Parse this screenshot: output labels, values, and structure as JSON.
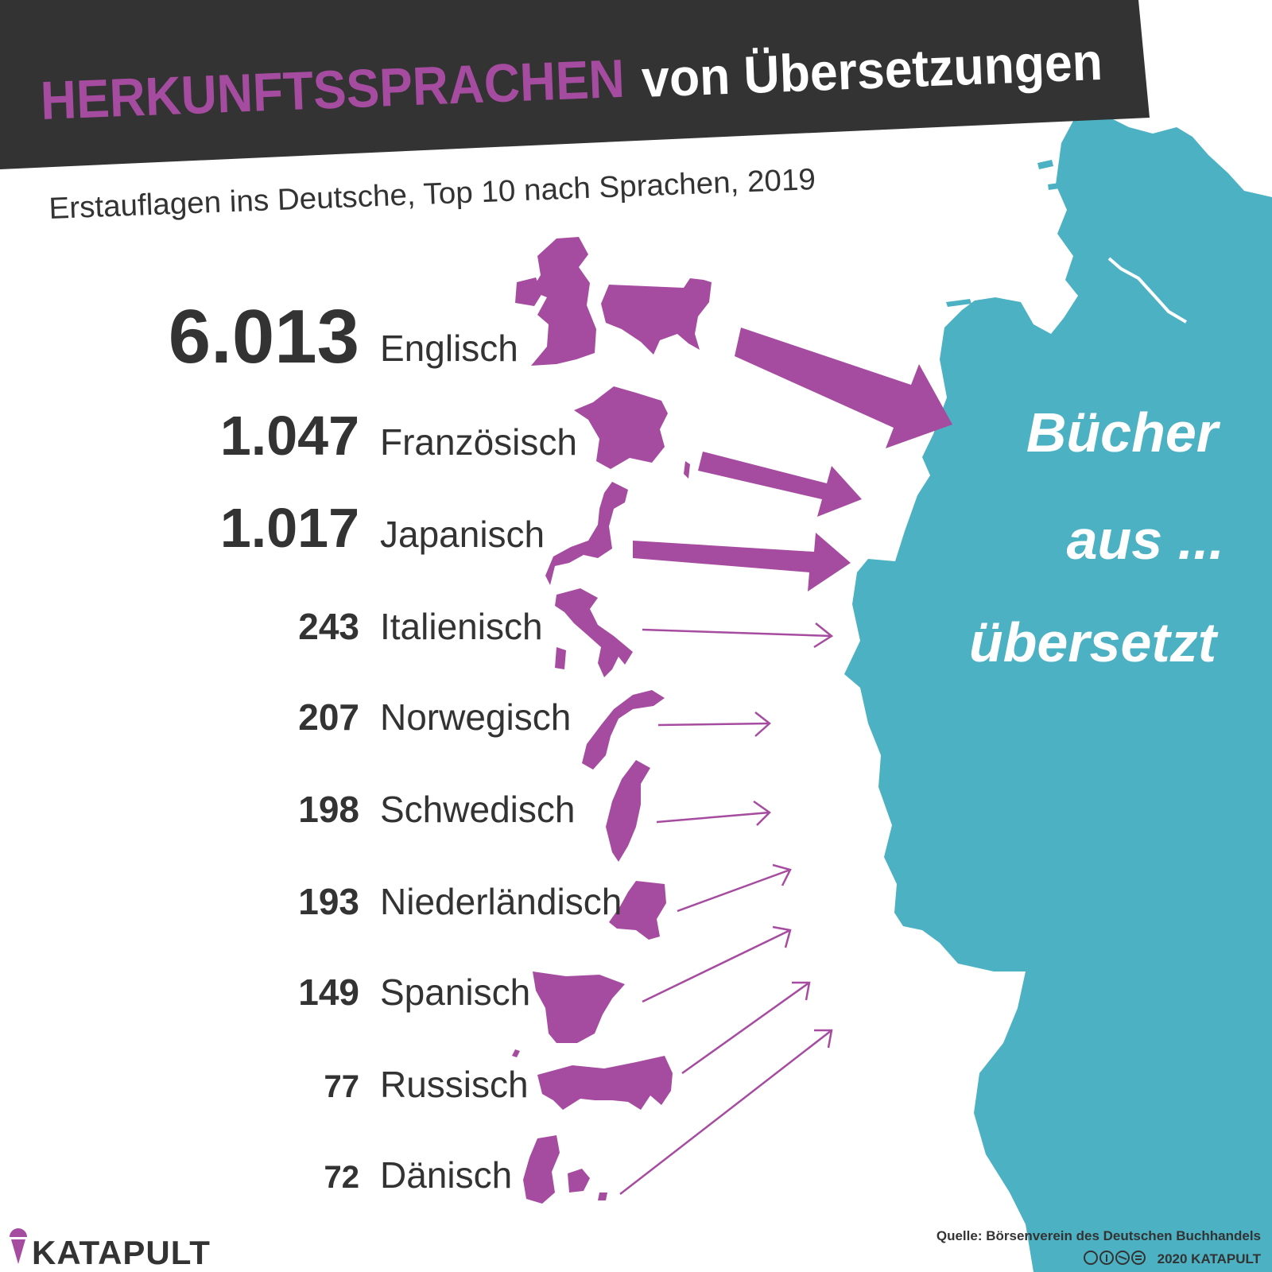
{
  "header": {
    "title_highlight": "HERKUNFTSSPRACHEN",
    "title_rest": "von Übersetzungen",
    "subtitle": "Erstauflagen ins Deutsche, Top 10 nach Sprachen, 2019"
  },
  "target": {
    "line1": "Bücher",
    "line2": "aus ...",
    "line3": "übersetzt"
  },
  "chart_data": {
    "type": "table",
    "title": "HERKUNFTSSPRACHEN von Übersetzungen",
    "subtitle": "Erstauflagen ins Deutsche, Top 10 nach Sprachen, 2019",
    "rows": [
      {
        "label": "Englisch",
        "value_text": "6.013",
        "value": 6013
      },
      {
        "label": "Französisch",
        "value_text": "1.047",
        "value": 1047
      },
      {
        "label": "Japanisch",
        "value_text": "1.017",
        "value": 1017
      },
      {
        "label": "Italienisch",
        "value_text": "243",
        "value": 243
      },
      {
        "label": "Norwegisch",
        "value_text": "207",
        "value": 207
      },
      {
        "label": "Schwedisch",
        "value_text": "198",
        "value": 198
      },
      {
        "label": "Niederländisch",
        "value_text": "193",
        "value": 193
      },
      {
        "label": "Spanisch",
        "value_text": "149",
        "value": 149
      },
      {
        "label": "Russisch",
        "value_text": "77",
        "value": 77
      },
      {
        "label": "Dänisch",
        "value_text": "72",
        "value": 72
      }
    ]
  },
  "footer": {
    "logo": "KATAPULT",
    "source": "Quelle: Börsenverein des Deutschen Buchhandels",
    "copyright": "2020 KATAPULT"
  },
  "colors": {
    "purple": "#a64ca0",
    "teal": "#4bb1c3",
    "dark": "#333333",
    "white": "#ffffff"
  },
  "icons": [
    "country-silhouette-icon",
    "arrow-icon",
    "germany-map-icon",
    "creative-commons-icons",
    "ice-cream-logo-icon"
  ]
}
